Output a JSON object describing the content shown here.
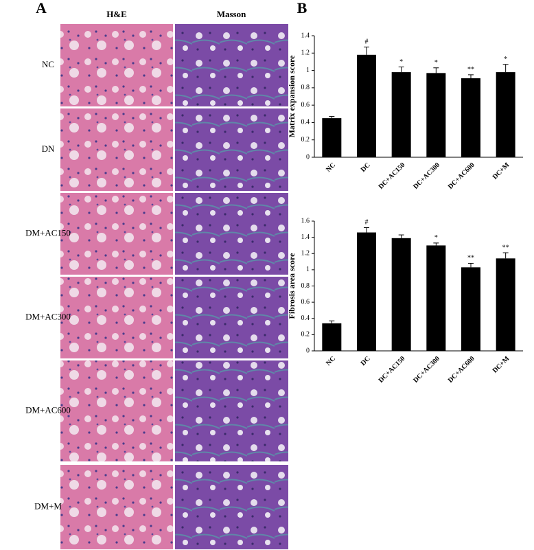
{
  "panel_a": {
    "label": "A",
    "columns": [
      "H&E",
      "Masson"
    ],
    "rows": [
      "NC",
      "DN",
      "DM+AC150",
      "DM+AC300",
      "DM+AC600",
      "DM+M"
    ]
  },
  "panel_b_label": "B",
  "chart_data": [
    {
      "type": "bar",
      "y_label": "Matrix expansion score",
      "categories": [
        "NC",
        "DC",
        "DC+AC150",
        "DC+AC300",
        "DC+AC600",
        "DC+M"
      ],
      "values": [
        0.45,
        1.18,
        0.98,
        0.97,
        0.91,
        0.98
      ],
      "errors": [
        0.02,
        0.09,
        0.06,
        0.06,
        0.04,
        0.09
      ],
      "annotations": [
        null,
        "#",
        "*",
        "*",
        "**",
        "*"
      ],
      "color": "#000000",
      "ylim": [
        0,
        1.4
      ],
      "yticks": [
        0,
        0.2,
        0.4,
        0.6,
        0.8,
        1,
        1.2,
        1.4
      ]
    },
    {
      "type": "bar",
      "y_label": "Fibrosis area score",
      "categories": [
        "NC",
        "DC",
        "DC+AC150",
        "DC+AC300",
        "DC+AC600",
        "DC+M"
      ],
      "values": [
        0.34,
        1.46,
        1.39,
        1.3,
        1.03,
        1.14
      ],
      "errors": [
        0.03,
        0.06,
        0.04,
        0.03,
        0.05,
        0.07
      ],
      "annotations": [
        null,
        "#",
        null,
        "*",
        "**",
        "**"
      ],
      "color": "#000000",
      "ylim": [
        0,
        1.6
      ],
      "yticks": [
        0,
        0.2,
        0.4,
        0.6,
        0.8,
        1,
        1.2,
        1.4,
        1.6
      ]
    }
  ]
}
